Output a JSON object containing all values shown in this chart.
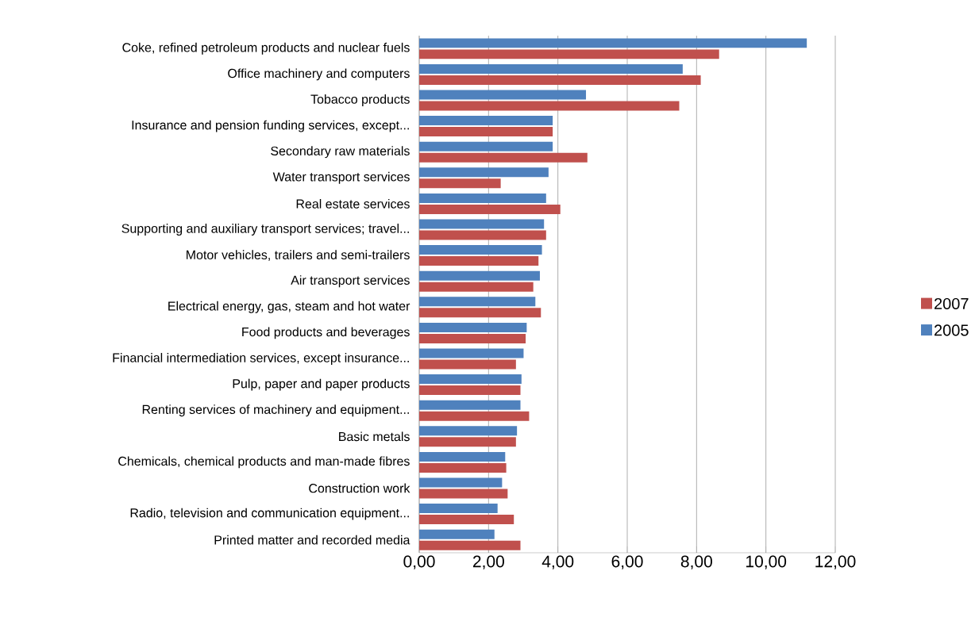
{
  "chart_data": {
    "type": "bar",
    "orientation": "horizontal",
    "categories": [
      "Coke, refined petroleum products and nuclear fuels",
      "Office machinery and computers",
      "Tobacco products",
      "Insurance and pension funding services, except...",
      "Secondary raw materials",
      "Water transport services",
      "Real estate services",
      "Supporting and auxiliary transport services; travel...",
      "Motor vehicles, trailers and semi-trailers",
      "Air transport services",
      "Electrical energy, gas, steam and hot water",
      "Food products and beverages",
      "Financial intermediation services, except insurance...",
      "Pulp, paper and paper products",
      "Renting services of machinery and equipment...",
      "Basic metals",
      "Chemicals, chemical products and man-made fibres",
      "Construction work",
      "Radio, television and communication equipment...",
      "Printed matter and recorded media"
    ],
    "series": [
      {
        "name": "2007",
        "color": "#c0504d",
        "values": [
          8.65,
          8.12,
          7.5,
          3.85,
          4.85,
          2.35,
          4.07,
          3.66,
          3.44,
          3.29,
          3.51,
          3.07,
          2.79,
          2.92,
          3.17,
          2.79,
          2.51,
          2.55,
          2.73,
          2.92
        ]
      },
      {
        "name": "2005",
        "color": "#4f81bd",
        "values": [
          11.18,
          7.6,
          4.81,
          3.85,
          3.85,
          3.73,
          3.66,
          3.6,
          3.54,
          3.48,
          3.35,
          3.1,
          3.01,
          2.95,
          2.92,
          2.82,
          2.48,
          2.39,
          2.26,
          2.17
        ]
      }
    ],
    "xlim": [
      0,
      12
    ],
    "xticks": [
      {
        "value": 0,
        "label": "0,00"
      },
      {
        "value": 2,
        "label": "2,00"
      },
      {
        "value": 4,
        "label": "4,00"
      },
      {
        "value": 6,
        "label": "6,00"
      },
      {
        "value": 8,
        "label": "8,00"
      },
      {
        "value": 10,
        "label": "10,00"
      },
      {
        "value": 12,
        "label": "12,00"
      }
    ],
    "grid": "x",
    "legend": "right"
  }
}
